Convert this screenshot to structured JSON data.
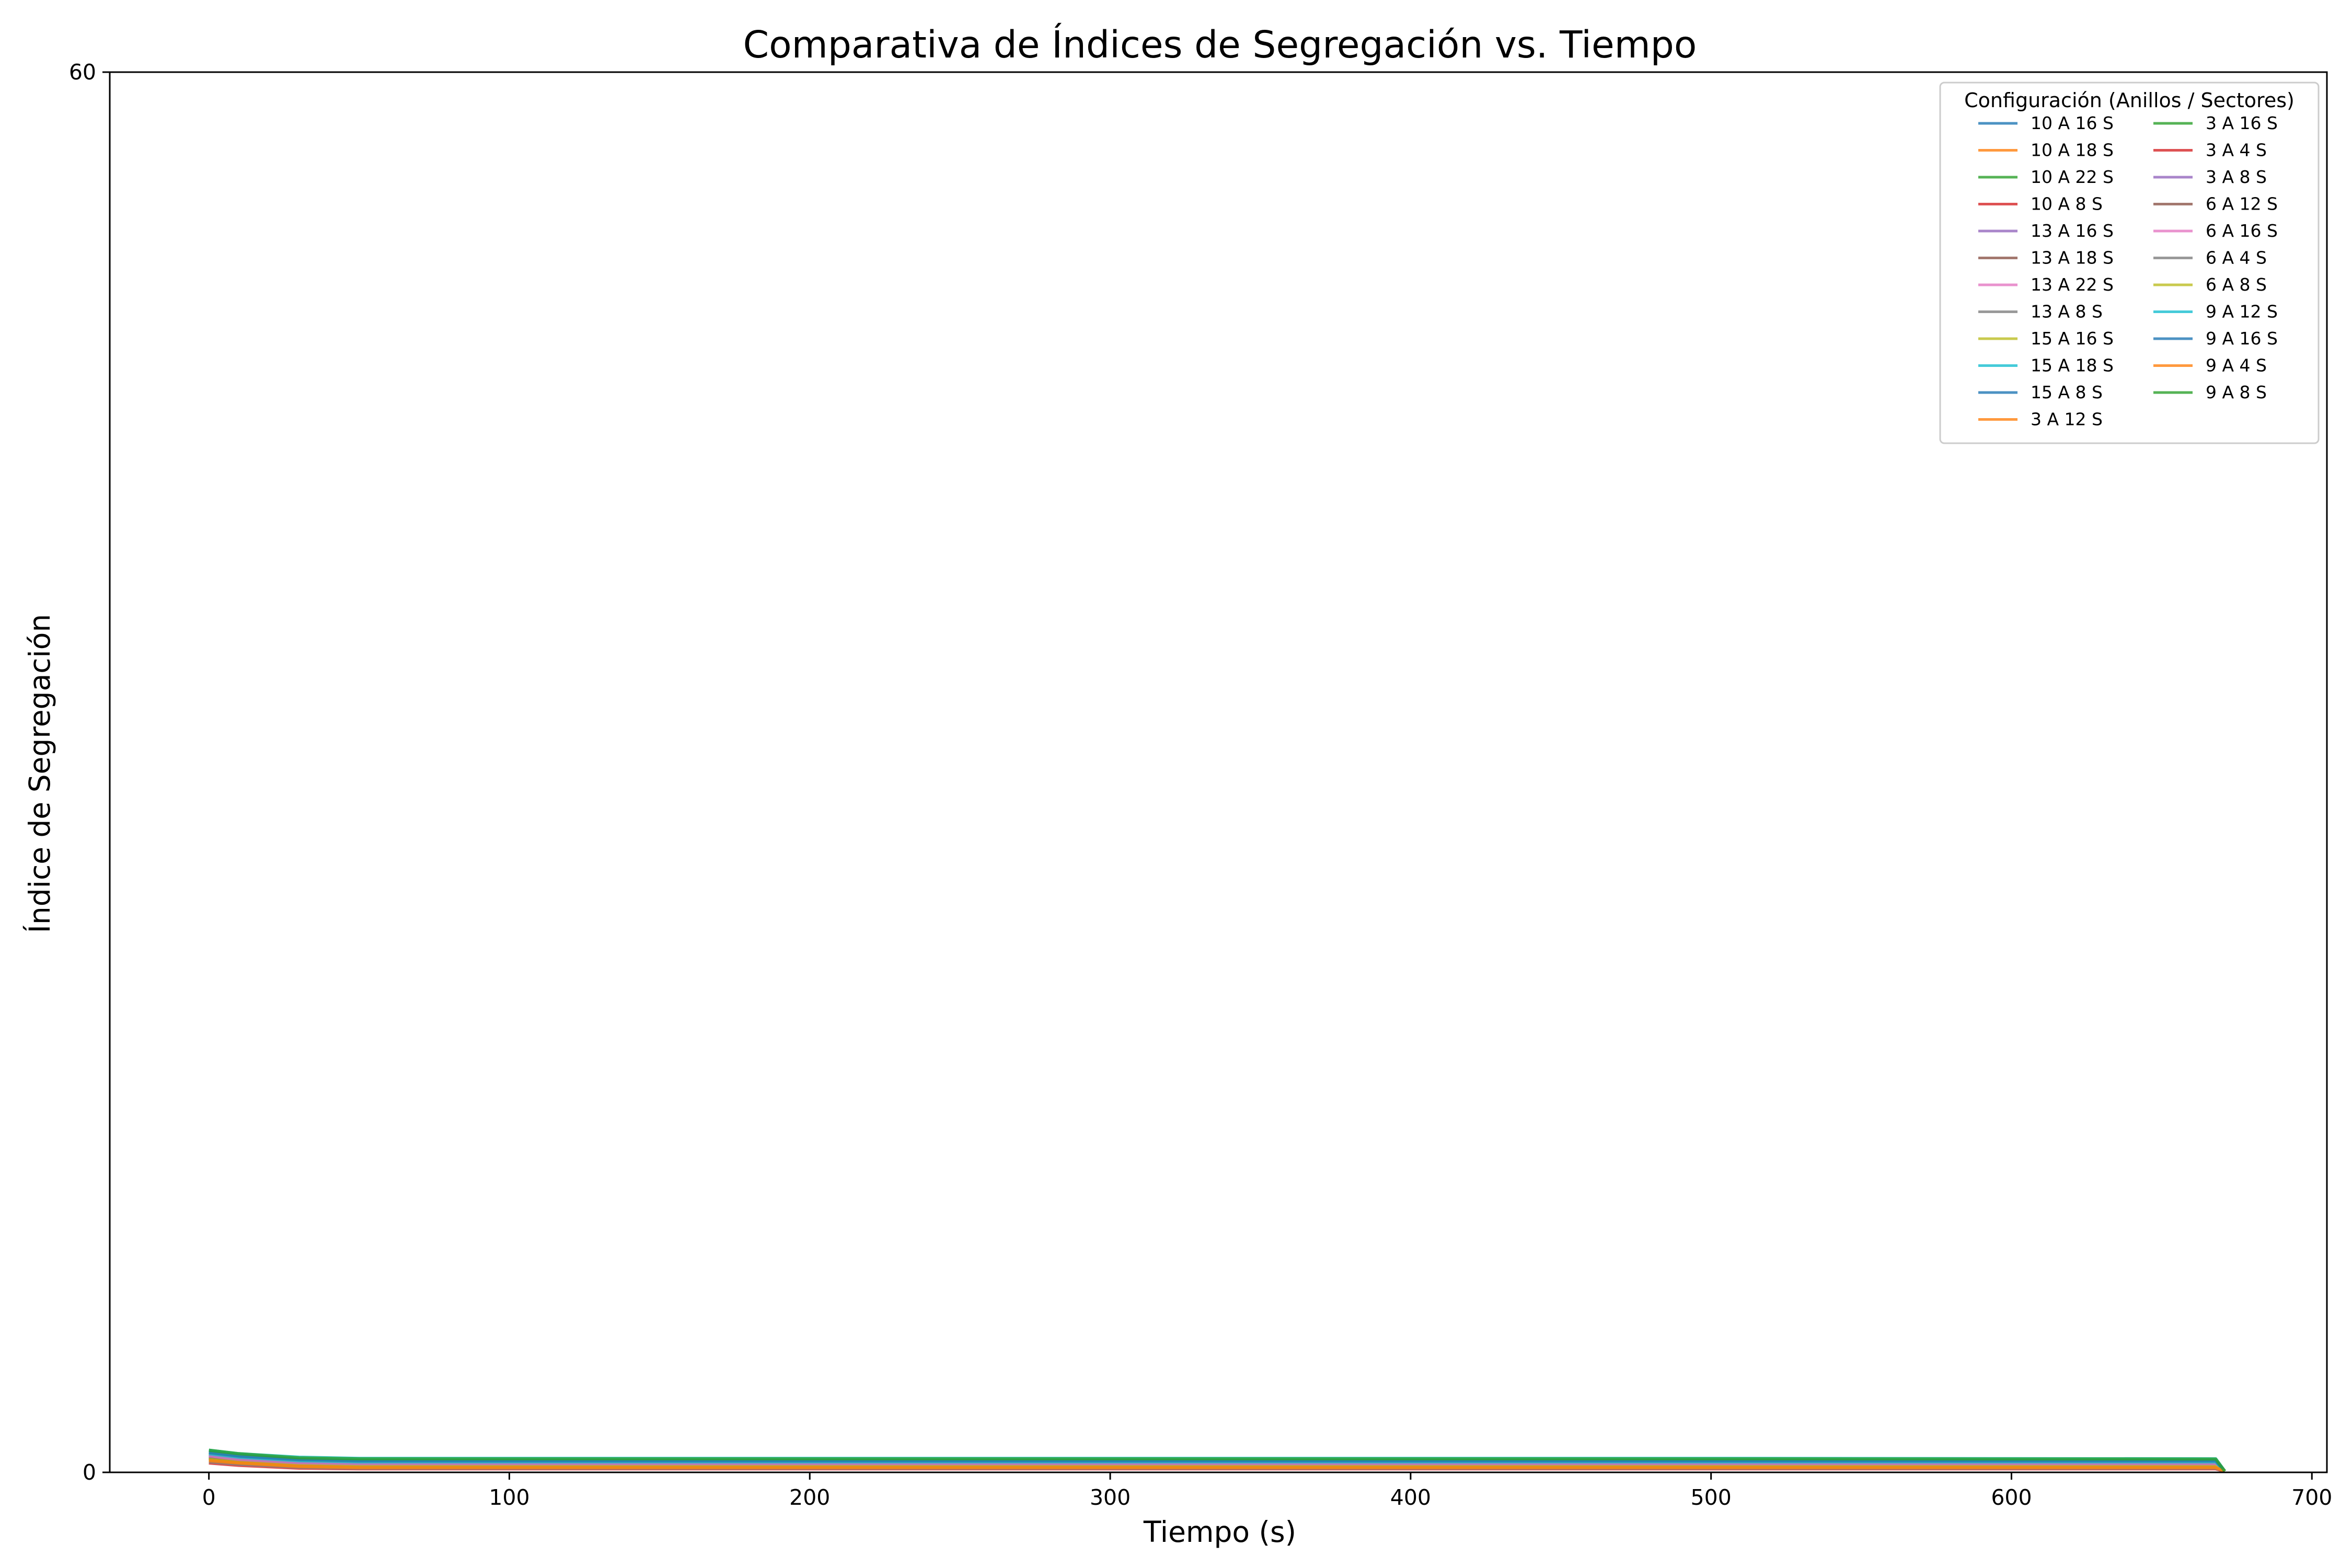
{
  "chart_data": {
    "type": "line",
    "title": "Comparativa de Índices de Segregación vs. Tiempo",
    "xlabel": "Tiempo (s)",
    "ylabel": "Índice de Segregación",
    "xlim": [
      -33,
      705
    ],
    "ylim": [
      0,
      60
    ],
    "xticks": [
      0,
      100,
      200,
      300,
      400,
      500,
      600,
      700
    ],
    "yticks": [
      0,
      60
    ],
    "grid": false,
    "reference_line": {
      "y": 0,
      "style": "dashed",
      "color": "#000000"
    },
    "legend": {
      "title": "Configuración (Anillos / Sectores)",
      "placement": "top-right",
      "columns": 2
    },
    "series": [
      {
        "name": "10 A 16 S",
        "color": "#1f77b4",
        "values": [
          0.9,
          0.75,
          0.55,
          0.5,
          0.5,
          0.5,
          0.5,
          0.5,
          0.5,
          0.48,
          0.05
        ]
      },
      {
        "name": "10 A 18 S",
        "color": "#ff7f0e",
        "values": [
          0.7,
          0.55,
          0.4,
          0.35,
          0.35,
          0.35,
          0.35,
          0.35,
          0.35,
          0.35,
          0.05
        ]
      },
      {
        "name": "10 A 22 S",
        "color": "#2ca02c",
        "values": [
          0.85,
          0.7,
          0.52,
          0.48,
          0.48,
          0.48,
          0.48,
          0.48,
          0.48,
          0.46,
          0.05
        ]
      },
      {
        "name": "10 A 8 S",
        "color": "#d62728",
        "values": [
          0.6,
          0.45,
          0.3,
          0.25,
          0.25,
          0.25,
          0.25,
          0.25,
          0.25,
          0.25,
          0.05
        ]
      },
      {
        "name": "13 A 16 S",
        "color": "#9467bd",
        "values": [
          0.8,
          0.65,
          0.5,
          0.45,
          0.45,
          0.45,
          0.45,
          0.45,
          0.45,
          0.44,
          0.05
        ]
      },
      {
        "name": "13 A 18 S",
        "color": "#8c564b",
        "values": [
          0.75,
          0.6,
          0.45,
          0.4,
          0.4,
          0.4,
          0.4,
          0.4,
          0.4,
          0.4,
          0.05
        ]
      },
      {
        "name": "13 A 22 S",
        "color": "#e377c2",
        "values": [
          0.85,
          0.7,
          0.55,
          0.5,
          0.5,
          0.5,
          0.5,
          0.5,
          0.5,
          0.49,
          0.05
        ]
      },
      {
        "name": "13 A 8 S",
        "color": "#7f7f7f",
        "values": [
          0.65,
          0.5,
          0.35,
          0.3,
          0.3,
          0.3,
          0.3,
          0.3,
          0.3,
          0.3,
          0.05
        ]
      },
      {
        "name": "15 A 16 S",
        "color": "#bcbd22",
        "values": [
          0.85,
          0.7,
          0.55,
          0.5,
          0.5,
          0.5,
          0.5,
          0.5,
          0.5,
          0.5,
          0.05
        ]
      },
      {
        "name": "15 A 18 S",
        "color": "#17becf",
        "values": [
          0.95,
          0.8,
          0.65,
          0.6,
          0.6,
          0.6,
          0.6,
          0.6,
          0.6,
          0.58,
          0.05
        ]
      },
      {
        "name": "15 A 8 S",
        "color": "#1f77b4",
        "values": [
          0.7,
          0.55,
          0.4,
          0.35,
          0.35,
          0.35,
          0.35,
          0.35,
          0.35,
          0.35,
          0.05
        ]
      },
      {
        "name": "3 A 12 S",
        "color": "#ff7f0e",
        "values": [
          0.55,
          0.45,
          0.3,
          0.25,
          0.25,
          0.25,
          0.25,
          0.25,
          0.25,
          0.25,
          0.05
        ]
      },
      {
        "name": "3 A 16 S",
        "color": "#2ca02c",
        "values": [
          0.6,
          0.48,
          0.32,
          0.28,
          0.28,
          0.28,
          0.28,
          0.28,
          0.28,
          0.28,
          0.05
        ]
      },
      {
        "name": "3 A 4 S",
        "color": "#d62728",
        "values": [
          0.4,
          0.3,
          0.18,
          0.15,
          0.15,
          0.15,
          0.15,
          0.15,
          0.15,
          0.15,
          0.05
        ]
      },
      {
        "name": "3 A 8 S",
        "color": "#9467bd",
        "values": [
          0.5,
          0.4,
          0.25,
          0.2,
          0.2,
          0.2,
          0.2,
          0.2,
          0.2,
          0.2,
          0.05
        ]
      },
      {
        "name": "6 A 12 S",
        "color": "#8c564b",
        "values": [
          0.6,
          0.45,
          0.3,
          0.25,
          0.25,
          0.25,
          0.25,
          0.25,
          0.25,
          0.25,
          0.05
        ]
      },
      {
        "name": "6 A 16 S",
        "color": "#e377c2",
        "values": [
          0.7,
          0.55,
          0.4,
          0.35,
          0.35,
          0.35,
          0.35,
          0.35,
          0.35,
          0.35,
          0.05
        ]
      },
      {
        "name": "6 A 4 S",
        "color": "#7f7f7f",
        "values": [
          0.45,
          0.35,
          0.22,
          0.18,
          0.18,
          0.18,
          0.18,
          0.18,
          0.18,
          0.18,
          0.05
        ]
      },
      {
        "name": "6 A 8 S",
        "color": "#bcbd22",
        "values": [
          0.55,
          0.42,
          0.28,
          0.24,
          0.24,
          0.24,
          0.24,
          0.24,
          0.24,
          0.24,
          0.05
        ]
      },
      {
        "name": "9 A 12 S",
        "color": "#17becf",
        "values": [
          0.8,
          0.65,
          0.5,
          0.45,
          0.45,
          0.45,
          0.45,
          0.45,
          0.45,
          0.45,
          0.05
        ]
      },
      {
        "name": "9 A 16 S",
        "color": "#1f77b4",
        "values": [
          0.85,
          0.7,
          0.55,
          0.5,
          0.5,
          0.5,
          0.5,
          0.5,
          0.5,
          0.5,
          0.05
        ]
      },
      {
        "name": "9 A 4 S",
        "color": "#ff7f0e",
        "values": [
          0.5,
          0.4,
          0.25,
          0.2,
          0.2,
          0.2,
          0.2,
          0.2,
          0.2,
          0.2,
          0.05
        ]
      },
      {
        "name": "9 A 8 S",
        "color": "#2ca02c",
        "values": [
          0.95,
          0.8,
          0.62,
          0.58,
          0.58,
          0.58,
          0.58,
          0.58,
          0.58,
          0.57,
          0.05
        ]
      }
    ],
    "x": [
      0,
      10,
      30,
      50,
      100,
      200,
      300,
      400,
      500,
      668,
      671
    ]
  }
}
